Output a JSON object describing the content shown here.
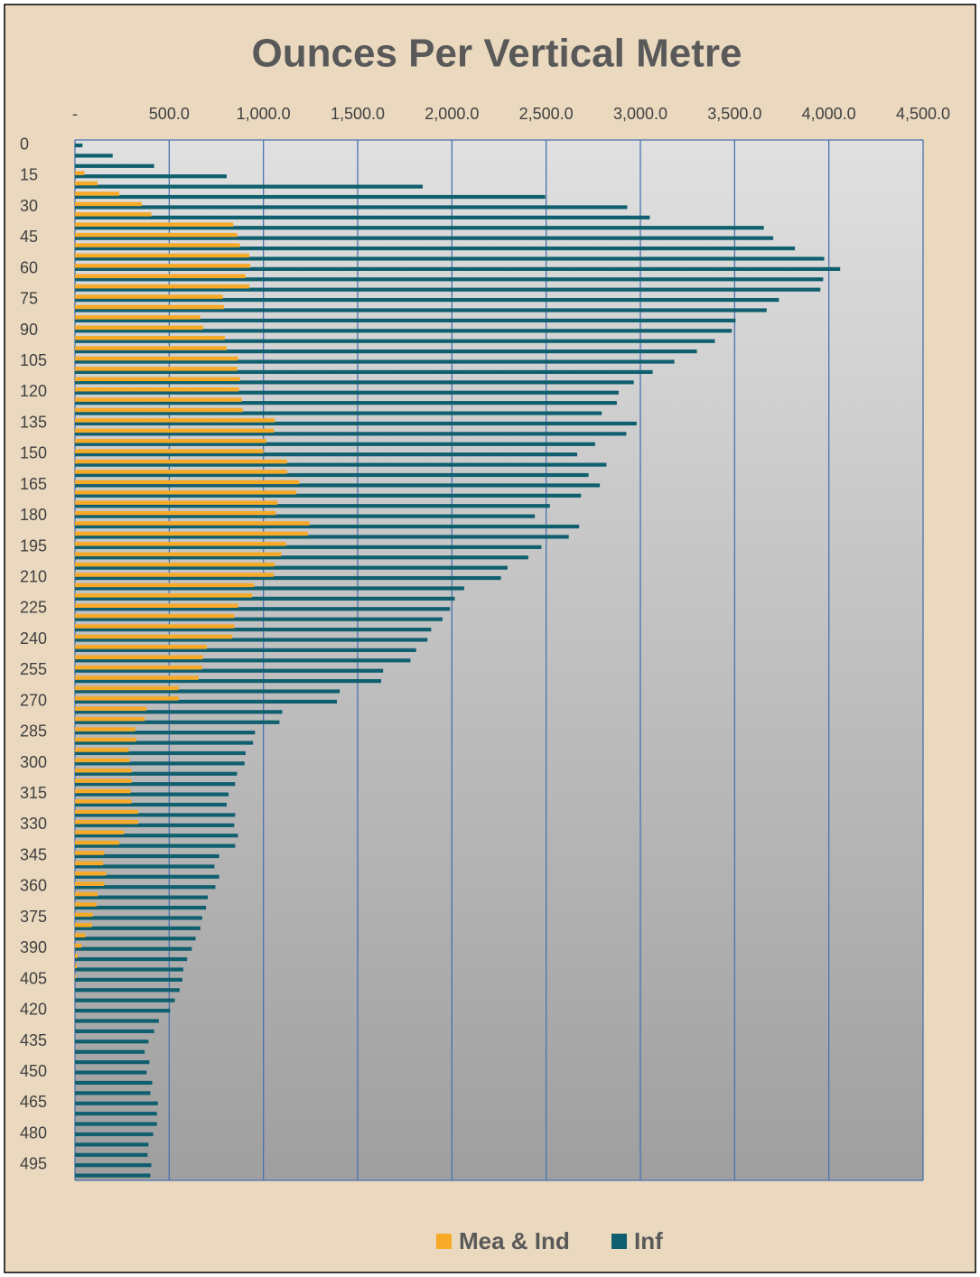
{
  "chart_data": {
    "type": "bar",
    "orientation": "horizontal",
    "title": "Ounces Per Vertical Metre",
    "categories": [
      0,
      null,
      null,
      15,
      null,
      null,
      30,
      null,
      null,
      45,
      null,
      null,
      60,
      null,
      null,
      75,
      null,
      null,
      90,
      null,
      null,
      105,
      null,
      null,
      120,
      null,
      null,
      135,
      null,
      null,
      150,
      null,
      null,
      165,
      null,
      null,
      180,
      null,
      null,
      195,
      null,
      null,
      210,
      null,
      null,
      225,
      null,
      null,
      240,
      null,
      null,
      255,
      null,
      null,
      270,
      null,
      null,
      285,
      null,
      null,
      300,
      null,
      null,
      315,
      null,
      null,
      330,
      null,
      null,
      345,
      null,
      null,
      360,
      null,
      null,
      375,
      null,
      null,
      390,
      null,
      null,
      405,
      null,
      null,
      420,
      null,
      null,
      435,
      null,
      null,
      450,
      null,
      null,
      465,
      null,
      null,
      480,
      null,
      null,
      495,
      null
    ],
    "series": [
      {
        "name": "Mea & Ind",
        "color": "#f7a928",
        "values": [
          0,
          0,
          0,
          50,
          120,
          235,
          355,
          405,
          840,
          860,
          875,
          925,
          930,
          905,
          925,
          785,
          790,
          665,
          680,
          795,
          805,
          865,
          860,
          875,
          870,
          885,
          890,
          1060,
          1055,
          1015,
          1000,
          1125,
          1125,
          1190,
          1175,
          1075,
          1065,
          1245,
          1235,
          1120,
          1095,
          1060,
          1055,
          950,
          940,
          865,
          845,
          845,
          835,
          700,
          680,
          675,
          655,
          550,
          550,
          380,
          370,
          320,
          325,
          285,
          290,
          300,
          300,
          295,
          300,
          335,
          335,
          260,
          235,
          155,
          150,
          165,
          155,
          120,
          115,
          95,
          90,
          55,
          35,
          15,
          10,
          5,
          0,
          0,
          0,
          0,
          0,
          0,
          0,
          0,
          0,
          0,
          0,
          0,
          0,
          0,
          0,
          0,
          0,
          0,
          0
        ]
      },
      {
        "name": "Inf",
        "color": "#0f5f6e",
        "values": [
          40,
          200,
          420,
          805,
          1845,
          2495,
          2930,
          3050,
          3655,
          3705,
          3820,
          3975,
          4060,
          3970,
          3955,
          3735,
          3670,
          3505,
          3485,
          3395,
          3300,
          3180,
          3065,
          2965,
          2885,
          2875,
          2795,
          2980,
          2925,
          2760,
          2665,
          2820,
          2725,
          2785,
          2685,
          2520,
          2440,
          2675,
          2620,
          2475,
          2405,
          2295,
          2260,
          2065,
          2015,
          1990,
          1950,
          1890,
          1870,
          1810,
          1780,
          1635,
          1625,
          1405,
          1390,
          1100,
          1085,
          955,
          945,
          905,
          900,
          860,
          850,
          815,
          805,
          850,
          845,
          865,
          850,
          765,
          740,
          765,
          745,
          705,
          695,
          675,
          665,
          640,
          620,
          595,
          575,
          570,
          555,
          530,
          505,
          445,
          420,
          390,
          370,
          395,
          380,
          410,
          400,
          440,
          435,
          435,
          415,
          390,
          385,
          405,
          400
        ]
      }
    ],
    "xlim": [
      0,
      4500
    ],
    "xticks": [
      {
        "value": 0,
        "label": "-"
      },
      {
        "value": 500,
        "label": "500.0"
      },
      {
        "value": 1000,
        "label": "1,000.0"
      },
      {
        "value": 1500,
        "label": "1,500.0"
      },
      {
        "value": 2000,
        "label": "2,000.0"
      },
      {
        "value": 2500,
        "label": "2,500.0"
      },
      {
        "value": 3000,
        "label": "3,000.0"
      },
      {
        "value": 3500,
        "label": "3,500.0"
      },
      {
        "value": 4000,
        "label": "4,000.0"
      },
      {
        "value": 4500,
        "label": "4,500.0"
      }
    ],
    "grid": true,
    "legend": "bottom"
  }
}
